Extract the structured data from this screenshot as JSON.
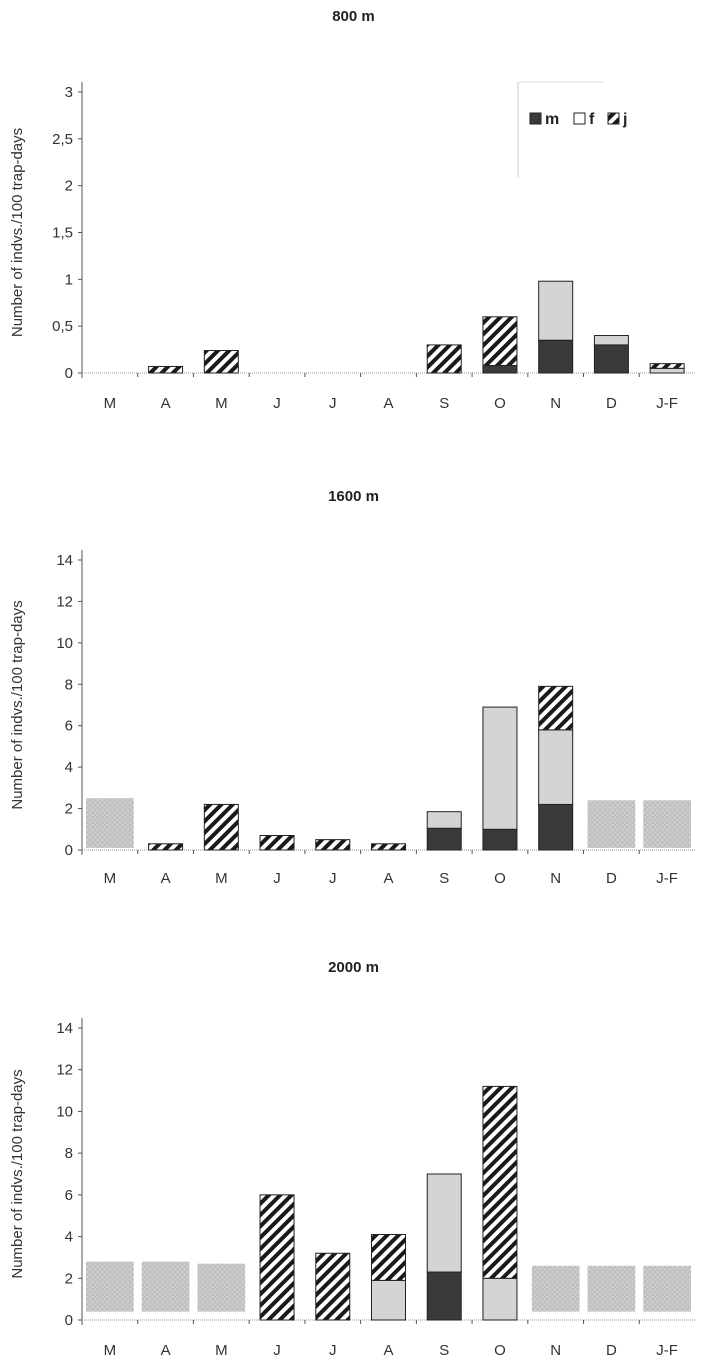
{
  "chart_data": [
    {
      "type": "bar",
      "title": "800 m",
      "ylabel": "Number of indvs./100 trap-days",
      "xlabel": "",
      "categories": [
        "M",
        "A",
        "M",
        "J",
        "J",
        "A",
        "S",
        "O",
        "N",
        "D",
        "J-F"
      ],
      "ylim": [
        0,
        3
      ],
      "yticks": [
        "0",
        "0,5",
        "1",
        "1,5",
        "2",
        "2,5",
        "3"
      ],
      "stacked": true,
      "series": [
        {
          "name": "m",
          "values": [
            0,
            0,
            0,
            0,
            0,
            0,
            0,
            0.08,
            0.35,
            0.3,
            0
          ]
        },
        {
          "name": "f",
          "values": [
            0,
            0,
            0,
            0,
            0,
            0,
            0,
            0,
            0.63,
            0.1,
            0.05
          ]
        },
        {
          "name": "j",
          "values": [
            0,
            0.07,
            0.24,
            0,
            0,
            0,
            0.3,
            0.52,
            0,
            0,
            0.05
          ]
        }
      ],
      "not_sampled": [],
      "legend": {
        "position": "top-right",
        "items": [
          "m",
          "f",
          "j"
        ]
      },
      "grid": false
    },
    {
      "type": "bar",
      "title": "1600 m",
      "ylabel": "Number of indvs./100 trap-days",
      "xlabel": "",
      "categories": [
        "M",
        "A",
        "M",
        "J",
        "J",
        "A",
        "S",
        "O",
        "N",
        "D",
        "J-F"
      ],
      "ylim": [
        0,
        14
      ],
      "yticks": [
        "0",
        "2",
        "4",
        "6",
        "8",
        "10",
        "12",
        "14"
      ],
      "stacked": true,
      "series": [
        {
          "name": "m",
          "values": [
            0,
            0,
            0,
            0,
            0,
            0,
            1.05,
            1.0,
            2.2,
            0,
            0
          ]
        },
        {
          "name": "f",
          "values": [
            0,
            0,
            0,
            0,
            0,
            0,
            0.8,
            5.9,
            3.6,
            0,
            0
          ]
        },
        {
          "name": "j",
          "values": [
            0,
            0.3,
            2.2,
            0.7,
            0.5,
            0.3,
            0,
            0,
            2.1,
            0,
            0
          ]
        }
      ],
      "not_sampled": [
        [
          0,
          0.1,
          2.5
        ],
        [
          9,
          0.1,
          2.4
        ],
        [
          10,
          0.1,
          2.4
        ]
      ],
      "legend": null,
      "grid": false
    },
    {
      "type": "bar",
      "title": "2000 m",
      "ylabel": "Number of indvs./100 trap-days",
      "xlabel": "",
      "categories": [
        "M",
        "A",
        "M",
        "J",
        "J",
        "A",
        "S",
        "O",
        "N",
        "D",
        "J-F"
      ],
      "ylim": [
        0,
        14
      ],
      "yticks": [
        "0",
        "2",
        "4",
        "6",
        "8",
        "10",
        "12",
        "14"
      ],
      "stacked": true,
      "series": [
        {
          "name": "m",
          "values": [
            0,
            0,
            0,
            0,
            0,
            0,
            2.3,
            0,
            0,
            0,
            0
          ]
        },
        {
          "name": "f",
          "values": [
            0,
            0,
            0,
            0,
            0,
            1.9,
            4.7,
            2.0,
            0,
            0,
            0
          ]
        },
        {
          "name": "j",
          "values": [
            0,
            0,
            0,
            6.0,
            3.2,
            2.2,
            0,
            9.2,
            0,
            0,
            0
          ]
        }
      ],
      "not_sampled": [
        [
          0,
          0.4,
          2.8
        ],
        [
          1,
          0.4,
          2.8
        ],
        [
          2,
          0.4,
          2.7
        ],
        [
          8,
          0.4,
          2.6
        ],
        [
          9,
          0.4,
          2.6
        ],
        [
          10,
          0.4,
          2.6
        ]
      ],
      "legend": null,
      "grid": false
    }
  ],
  "colors": {
    "m": "#3a3a3a",
    "f": "#d4d4d4",
    "j_stripe": "#1a1a1a",
    "not_sampled": "#cfcfcf",
    "axis": "#555555"
  }
}
